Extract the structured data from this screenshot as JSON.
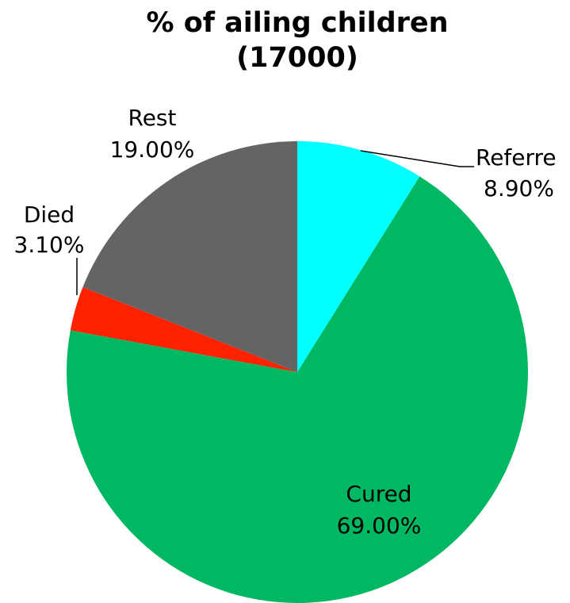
{
  "chart_data": {
    "type": "pie",
    "title": "% of ailing children",
    "subtitle": "(17000)",
    "categories": [
      "Referre",
      "Cured",
      "Died",
      "Rest"
    ],
    "values": [
      8.9,
      69,
      3.1,
      19
    ],
    "value_labels": [
      "8.90%",
      "69.00%",
      "3.10%",
      "19.00%"
    ],
    "colors": [
      "#00ffff",
      "#00b862",
      "#ff2200",
      "#646464"
    ]
  }
}
